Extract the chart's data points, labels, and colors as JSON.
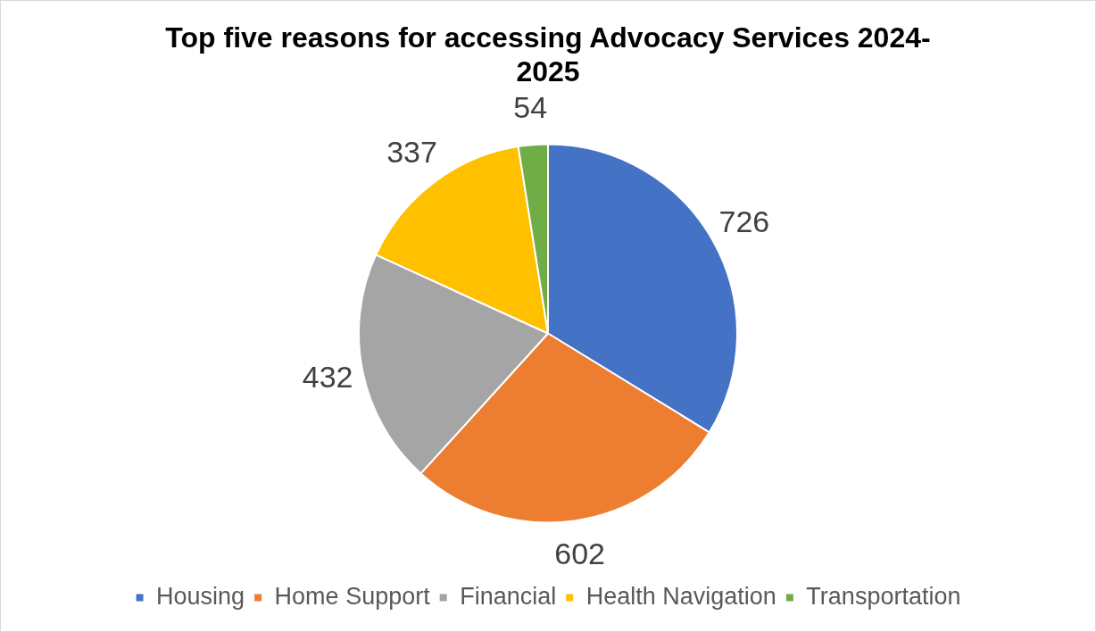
{
  "chart_data": {
    "type": "pie",
    "title": "Top five reasons for accessing Advocacy Services 2024-2025",
    "categories": [
      "Housing",
      "Home Support",
      "Financial",
      "Health Navigation",
      "Transportation"
    ],
    "values": [
      726,
      602,
      432,
      337,
      54
    ],
    "colors": [
      "#4472c4",
      "#ed7d31",
      "#a5a5a5",
      "#ffc000",
      "#70ad47"
    ],
    "data_labels": true,
    "legend": "bottom"
  }
}
